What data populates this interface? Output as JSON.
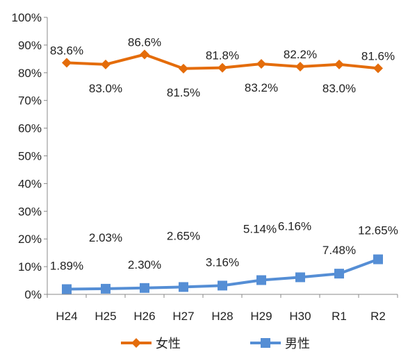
{
  "chart_data": {
    "type": "line",
    "categories": [
      "H24",
      "H25",
      "H26",
      "H27",
      "H28",
      "H29",
      "H30",
      "R1",
      "R2"
    ],
    "ylim": [
      0,
      100
    ],
    "yticks": [
      "0%",
      "10%",
      "20%",
      "30%",
      "40%",
      "50%",
      "60%",
      "70%",
      "80%",
      "90%",
      "100%"
    ],
    "grid": false,
    "legend_position": "bottom",
    "series": [
      {
        "name": "女性",
        "color": "#E46C0A",
        "marker": "diamond",
        "values": [
          83.6,
          83.0,
          86.6,
          81.5,
          81.8,
          83.2,
          82.2,
          83.0,
          81.6
        ],
        "labels": [
          "83.6%",
          "83.0%",
          "86.6%",
          "81.5%",
          "81.8%",
          "83.2%",
          "82.2%",
          "83.0%",
          "81.6%"
        ]
      },
      {
        "name": "男性",
        "color": "#558ED5",
        "marker": "square",
        "values": [
          1.89,
          2.03,
          2.3,
          2.65,
          3.16,
          5.14,
          6.16,
          7.48,
          12.65
        ],
        "labels": [
          "1.89%",
          "2.03%",
          "2.30%",
          "2.65%",
          "3.16%",
          "5.14%",
          "6.16%",
          "7.48%",
          "12.65%"
        ]
      }
    ]
  }
}
